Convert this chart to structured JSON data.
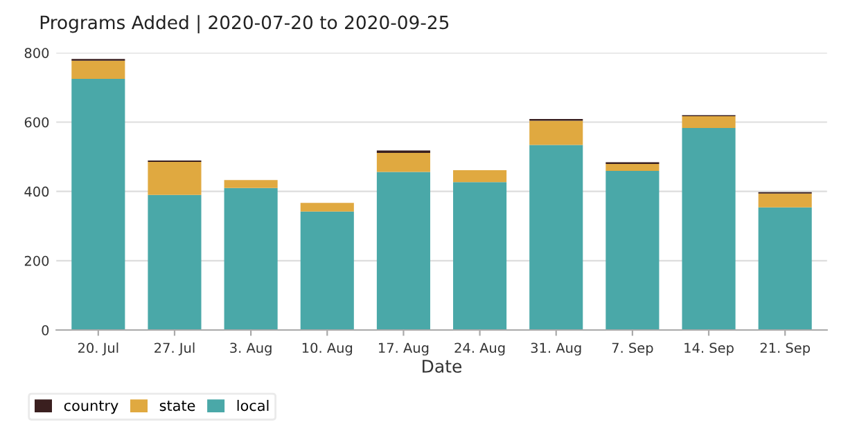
{
  "chart_data": {
    "type": "bar",
    "title": "Programs Added | 2020-07-20 to 2020-09-25",
    "xlabel": "Date",
    "categories": [
      "20. Jul",
      "27. Jul",
      "3. Aug",
      "10. Aug",
      "17. Aug",
      "24. Aug",
      "31. Aug",
      "7. Sep",
      "14. Sep",
      "21. Sep"
    ],
    "stacked": true,
    "series": [
      {
        "name": "local",
        "color": "#4aa8a8",
        "values": [
          725,
          390,
          410,
          342,
          456,
          427,
          534,
          459,
          583,
          354
        ]
      },
      {
        "name": "state",
        "color": "#e0a940",
        "values": [
          52,
          95,
          23,
          25,
          55,
          34,
          70,
          20,
          34,
          40
        ]
      },
      {
        "name": "country",
        "color": "#3a1f1f",
        "values": [
          5,
          4,
          null,
          null,
          7,
          null,
          5,
          5,
          3,
          4
        ]
      }
    ],
    "ylim": [
      0,
      800
    ],
    "yticks": [
      0,
      200,
      400,
      600,
      800
    ],
    "grid": "y",
    "legend": "bottom"
  }
}
